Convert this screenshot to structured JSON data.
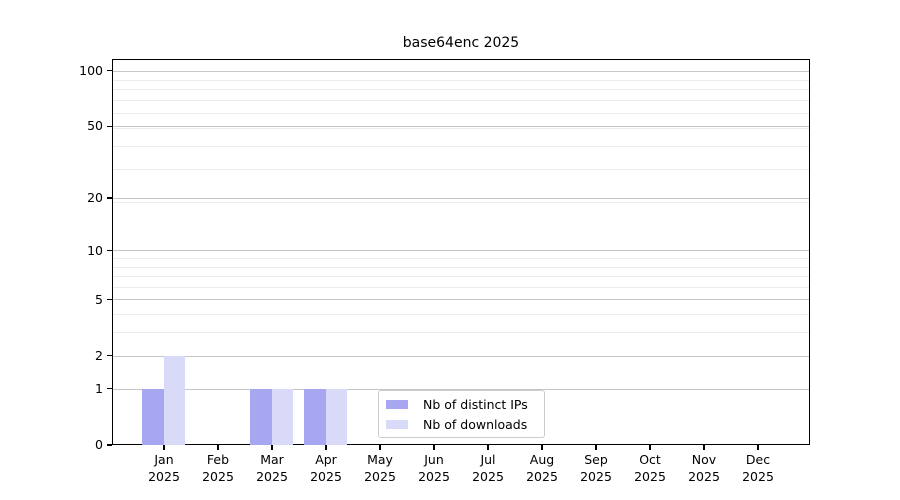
{
  "title": "base64enc 2025",
  "legend": {
    "items": [
      {
        "label": "Nb of distinct IPs",
        "color": "#a6a6f1"
      },
      {
        "label": "Nb of downloads",
        "color": "#d9d9f8"
      }
    ]
  },
  "chart_data": {
    "type": "bar",
    "title": "base64enc 2025",
    "categories": [
      "Jan",
      "Feb",
      "Mar",
      "Apr",
      "May",
      "Jun",
      "Jul",
      "Aug",
      "Sep",
      "Oct",
      "Nov",
      "Dec"
    ],
    "category_year": "2025",
    "series": [
      {
        "name": "Nb of distinct IPs",
        "color": "#a6a6f1",
        "values": [
          1,
          0,
          1,
          1,
          0,
          0,
          0,
          0,
          0,
          0,
          0,
          0
        ]
      },
      {
        "name": "Nb of downloads",
        "color": "#d9d9f8",
        "values": [
          2,
          0,
          1,
          1,
          0,
          0,
          0,
          0,
          0,
          0,
          0,
          0
        ]
      }
    ],
    "xlabel": "",
    "ylabel": "",
    "yscale": "log1p",
    "ylim": [
      0,
      115
    ],
    "y_major_ticks": [
      0,
      1,
      2,
      5,
      10,
      20,
      50,
      100
    ],
    "y_minor_gridlines": [
      3,
      4,
      6,
      7,
      8,
      9,
      19,
      29,
      39,
      49,
      59,
      69,
      79,
      89
    ],
    "grid": "horizontal",
    "legend_position": "lower center"
  },
  "colors": {
    "axis": "#000000",
    "major_grid": "#c6c6c6",
    "minor_grid": "#ededed",
    "legend_border": "#cccccc",
    "background": "#ffffff"
  }
}
